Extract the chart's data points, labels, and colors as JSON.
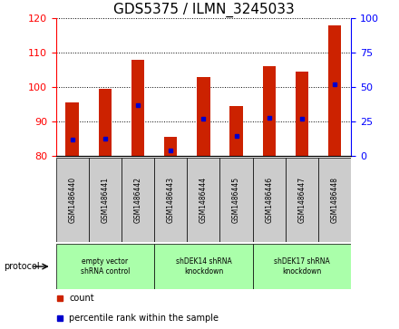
{
  "title": "GDS5375 / ILMN_3245033",
  "samples": [
    "GSM1486440",
    "GSM1486441",
    "GSM1486442",
    "GSM1486443",
    "GSM1486444",
    "GSM1486445",
    "GSM1486446",
    "GSM1486447",
    "GSM1486448"
  ],
  "bar_values": [
    95.5,
    99.5,
    108.0,
    85.5,
    103.0,
    94.5,
    106.0,
    104.5,
    118.0
  ],
  "bar_bottom": 80,
  "percentile_values": [
    12,
    13,
    37,
    4,
    27,
    15,
    28,
    27,
    52
  ],
  "ylim_left": [
    80,
    120
  ],
  "ylim_right": [
    0,
    100
  ],
  "yticks_left": [
    80,
    90,
    100,
    110,
    120
  ],
  "yticks_right": [
    0,
    25,
    50,
    75,
    100
  ],
  "bar_color": "#cc2200",
  "percentile_color": "#0000cc",
  "groups": [
    {
      "label": "empty vector\nshRNA control",
      "start": 0,
      "end": 3,
      "color": "#aaffaa"
    },
    {
      "label": "shDEK14 shRNA\nknockdown",
      "start": 3,
      "end": 6,
      "color": "#aaffaa"
    },
    {
      "label": "shDEK17 shRNA\nknockdown",
      "start": 6,
      "end": 9,
      "color": "#aaffaa"
    }
  ],
  "legend_count_label": "count",
  "legend_percentile_label": "percentile rank within the sample",
  "protocol_label": "protocol",
  "title_fontsize": 11,
  "tick_fontsize": 8,
  "bar_width": 0.4
}
